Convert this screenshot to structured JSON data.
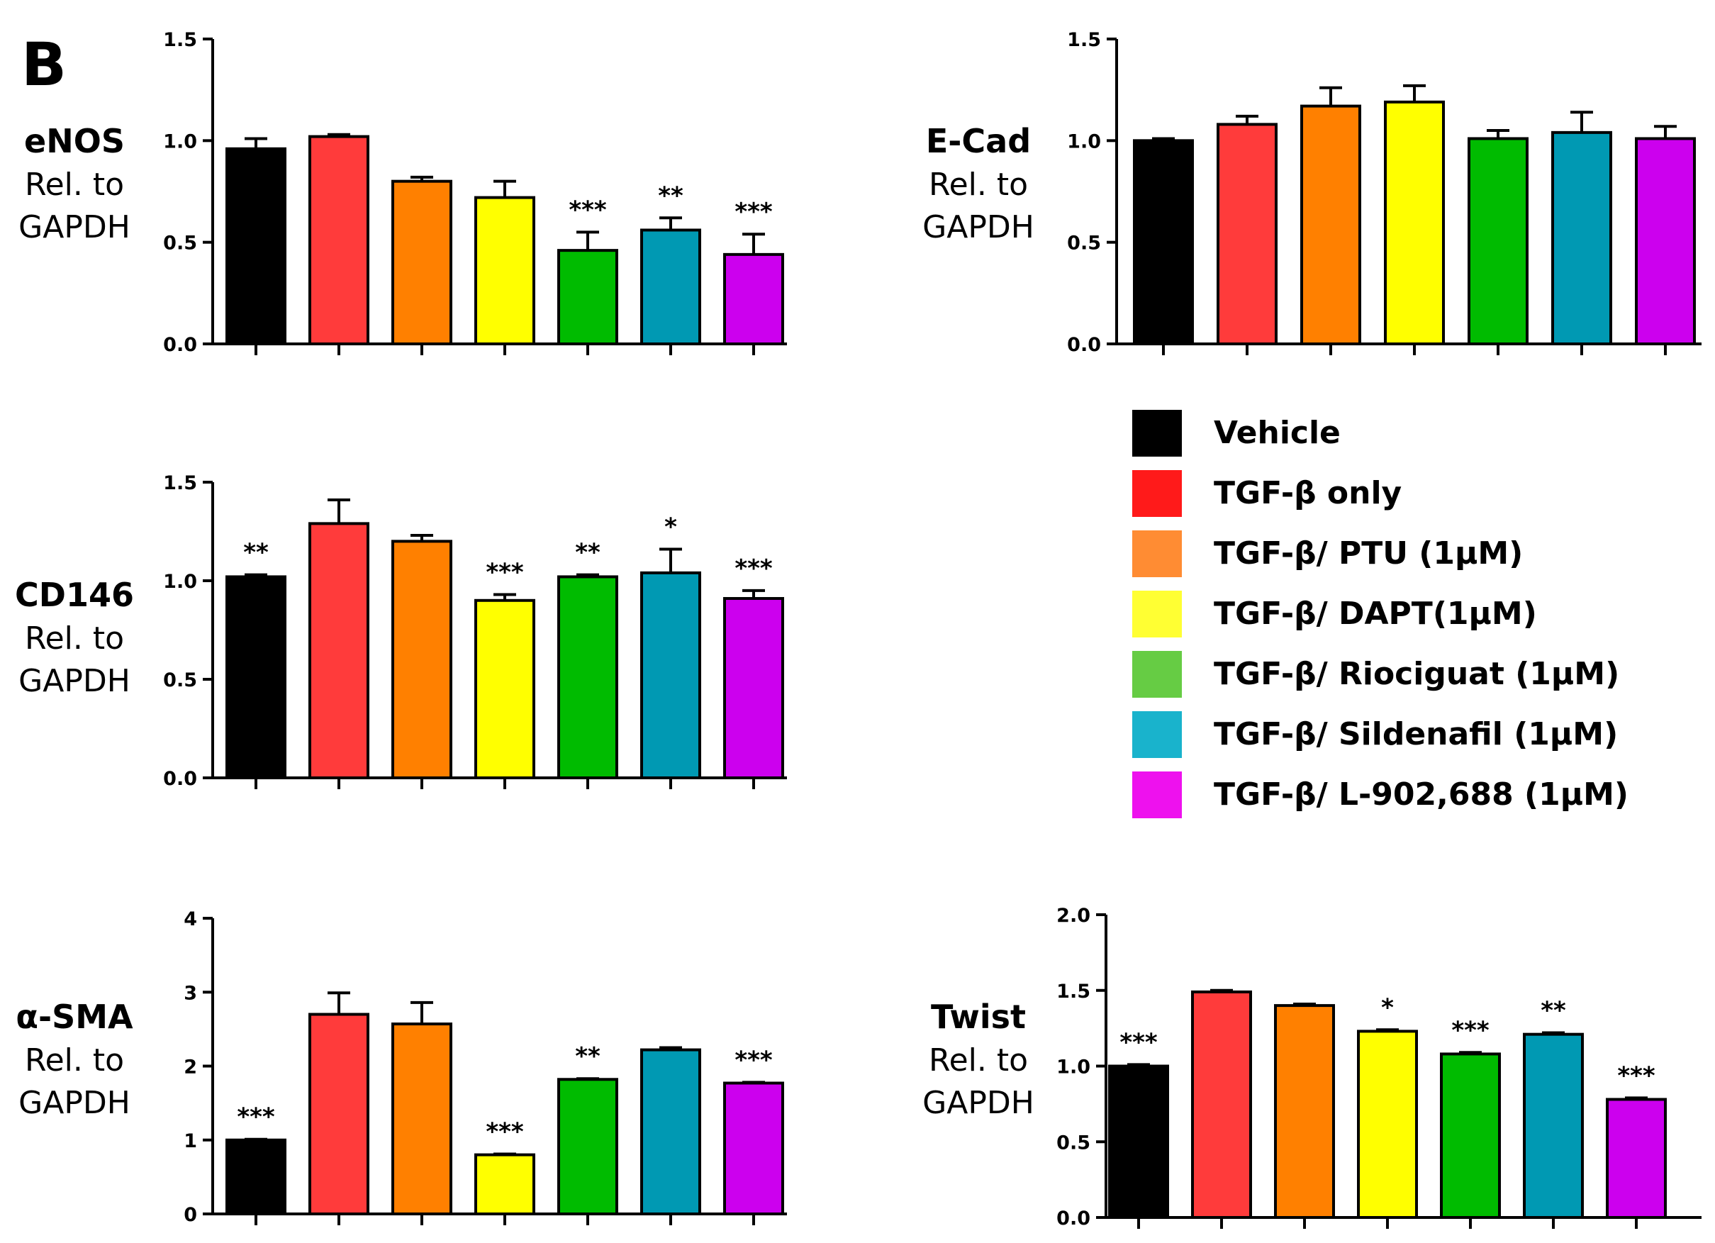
{
  "panel_label": "B",
  "legend": {
    "items": [
      {
        "label": "Vehicle",
        "color": "#000000"
      },
      {
        "label": "TGF-β  only",
        "color": "#ff1a1a"
      },
      {
        "label": "TGF-β/ PTU (1μM)",
        "color": "#ff8c33"
      },
      {
        "label": "TGF-β/ DAPT(1μM)",
        "color": "#ffff33"
      },
      {
        "label": "TGF-β/ Riociguat (1μM)",
        "color": "#66cc44"
      },
      {
        "label": "TGF-β/ Sildenafil (1μM)",
        "color": "#19b3cc"
      },
      {
        "label": "TGF-β/ L-902,688 (1μM)",
        "color": "#ee11ee"
      }
    ]
  },
  "bar_colors": [
    "#000000",
    "#ff3b3b",
    "#ff8000",
    "#ffff00",
    "#00bb00",
    "#0099b3",
    "#cc00ee"
  ],
  "chart_data": [
    {
      "type": "bar",
      "gene": "eNOS",
      "ylabel_line1": "Rel. to",
      "ylabel_line2": "GAPDH",
      "ylim": [
        0,
        1.5
      ],
      "yticks": [
        "0.0",
        "0.5",
        "1.0",
        "1.5"
      ],
      "ytick_values": [
        0,
        0.5,
        1.0,
        1.5
      ],
      "values": [
        0.96,
        1.02,
        0.8,
        0.72,
        0.46,
        0.56,
        0.44
      ],
      "errors": [
        0.05,
        0.01,
        0.02,
        0.08,
        0.09,
        0.06,
        0.1
      ],
      "significance": [
        "",
        "",
        "",
        "",
        "***",
        "**",
        "***"
      ]
    },
    {
      "type": "bar",
      "gene": "E-Cad",
      "ylabel_line1": "Rel. to",
      "ylabel_line2": "GAPDH",
      "ylim": [
        0,
        1.5
      ],
      "yticks": [
        "0.0",
        "0.5",
        "1.0",
        "1.5"
      ],
      "ytick_values": [
        0,
        0.5,
        1.0,
        1.5
      ],
      "values": [
        1.0,
        1.08,
        1.17,
        1.19,
        1.01,
        1.04,
        1.01
      ],
      "errors": [
        0.01,
        0.04,
        0.09,
        0.08,
        0.04,
        0.1,
        0.06
      ],
      "significance": [
        "",
        "",
        "",
        "",
        "",
        "",
        ""
      ]
    },
    {
      "type": "bar",
      "gene": "CD146",
      "ylabel_line1": "Rel. to",
      "ylabel_line2": "GAPDH",
      "ylim": [
        0,
        1.5
      ],
      "yticks": [
        "0.0",
        "0.5",
        "1.0",
        "1.5"
      ],
      "ytick_values": [
        0,
        0.5,
        1.0,
        1.5
      ],
      "values": [
        1.02,
        1.29,
        1.2,
        0.9,
        1.02,
        1.04,
        0.91
      ],
      "errors": [
        0.01,
        0.12,
        0.03,
        0.03,
        0.01,
        0.12,
        0.04
      ],
      "significance": [
        "**",
        "",
        "",
        "***",
        "**",
        "*",
        "***"
      ]
    },
    {
      "type": "bar",
      "gene": "α-SMA",
      "ylabel_line1": "Rel. to",
      "ylabel_line2": "GAPDH",
      "ylim": [
        0,
        4
      ],
      "yticks": [
        "0",
        "1",
        "2",
        "3",
        "4"
      ],
      "ytick_values": [
        0,
        1,
        2,
        3,
        4
      ],
      "values": [
        1.0,
        2.7,
        2.57,
        0.8,
        1.82,
        2.22,
        1.77
      ],
      "errors": [
        0.01,
        0.29,
        0.29,
        0.01,
        0.01,
        0.03,
        0.01
      ],
      "significance": [
        "***",
        "",
        "",
        "***",
        "**",
        "",
        "***"
      ]
    },
    {
      "type": "bar",
      "gene": "Twist",
      "ylabel_line1": "Rel. to",
      "ylabel_line2": "GAPDH",
      "ylim": [
        0,
        2.0
      ],
      "yticks": [
        "0.0",
        "0.5",
        "1.0",
        "1.5",
        "2.0"
      ],
      "ytick_values": [
        0,
        0.5,
        1.0,
        1.5,
        2.0
      ],
      "values": [
        1.0,
        1.49,
        1.4,
        1.23,
        1.08,
        1.21,
        0.78
      ],
      "errors": [
        0.01,
        0.01,
        0.01,
        0.01,
        0.01,
        0.01,
        0.01
      ],
      "significance": [
        "***",
        "",
        "",
        "*",
        "***",
        "**",
        "***"
      ]
    }
  ]
}
